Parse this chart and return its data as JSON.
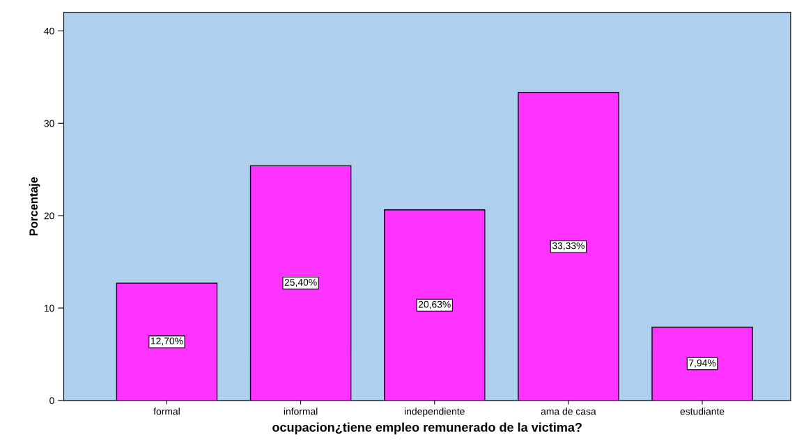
{
  "chart_data": {
    "type": "bar",
    "xlabel": "ocupacion¿tiene empleo remunerado de la victima?",
    "ylabel": "Porcentaje",
    "categories": [
      "formal",
      "informal",
      "independiente",
      "ama de casa",
      "estudiante"
    ],
    "values": [
      12.7,
      25.4,
      20.63,
      33.33,
      7.94
    ],
    "value_labels": [
      "12,70%",
      "25,40%",
      "20,63%",
      "33,33%",
      "7,94%"
    ],
    "color": "#ff33ff",
    "ylim": [
      0,
      42
    ],
    "yticks": [
      0,
      10,
      20,
      30,
      40
    ],
    "grid": false,
    "legend": false
  }
}
